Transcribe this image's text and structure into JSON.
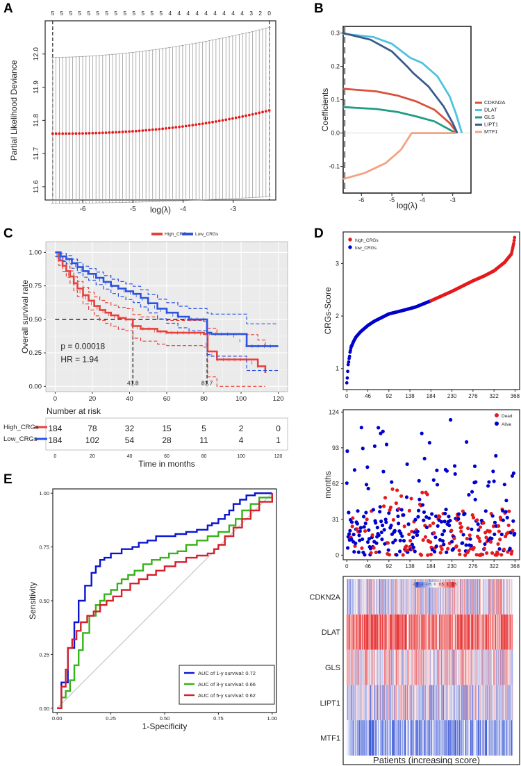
{
  "panels": {
    "A": {
      "letter": "A"
    },
    "B": {
      "letter": "B"
    },
    "C": {
      "letter": "C"
    },
    "D": {
      "letter": "D"
    },
    "E": {
      "letter": "E"
    }
  },
  "colors": {
    "red": "#d62728",
    "blue": "#1f3fd1",
    "dark_red": "#e41a1c",
    "dark_blue": "#0000cd",
    "cdkn2a": "#d9503b",
    "dlat": "#4ec2e0",
    "gls": "#1e9c84",
    "lipt1": "#3a5a8c",
    "mtf1": "#f3a282",
    "heat_high": "#e8383a",
    "heat_low": "#3d5ad8"
  },
  "chart_data": [
    {
      "id": "A",
      "type": "scatter",
      "title": "",
      "xlabel": "log(λ)",
      "ylabel": "Partial Likelihood Deviance",
      "xlim": [
        -6.75,
        -2.15
      ],
      "ylim": [
        11.56,
        12.1
      ],
      "xticks": [
        "-6",
        "-5",
        "-4",
        "-3"
      ],
      "xtick_values": [
        -6,
        -5,
        -4,
        -3
      ],
      "yticks": [
        "11.6",
        "11.7",
        "11.8",
        "11.9",
        "12.0"
      ],
      "ytick_values": [
        11.6,
        11.7,
        11.8,
        11.9,
        12.0
      ],
      "top_counts": [
        "5",
        "5",
        "5",
        "5",
        "5",
        "5",
        "5",
        "5",
        "5",
        "5",
        "5",
        "5",
        "5",
        "4",
        "4",
        "4",
        "4",
        "4",
        "4",
        "4",
        "4",
        "4",
        "3",
        "2",
        "0"
      ],
      "top_count_x": [
        -6.6,
        -6.42,
        -6.24,
        -6.06,
        -5.88,
        -5.7,
        -5.52,
        -5.34,
        -5.16,
        -4.98,
        -4.8,
        -4.62,
        -4.44,
        -4.26,
        -4.08,
        -3.9,
        -3.72,
        -3.54,
        -3.36,
        -3.18,
        -3.0,
        -2.82,
        -2.64,
        -2.46,
        -2.28
      ],
      "vlines": [
        -6.6,
        -2.28
      ],
      "n_points": 66,
      "x_start": -6.6,
      "x_end": -2.28,
      "mean_start": 11.76,
      "mean_end": 11.83,
      "upper_start": 11.99,
      "upper_end": 12.08,
      "lower_start": 11.55,
      "lower_end": 11.57
    },
    {
      "id": "B",
      "type": "line",
      "xlabel": "log(λ)",
      "ylabel": "Coefficients",
      "xlim": [
        -6.6,
        -2.4
      ],
      "ylim": [
        -0.18,
        0.32
      ],
      "xticks": [
        "-6",
        "-5",
        "-4",
        "-3"
      ],
      "xtick_values": [
        -6,
        -5,
        -4,
        -3
      ],
      "yticks": [
        "-0.1",
        "0.0",
        "0.1",
        "0.2",
        "0.3"
      ],
      "ytick_values": [
        -0.1,
        0.0,
        0.1,
        0.2,
        0.3
      ],
      "series": [
        {
          "name": "CDKN2A",
          "x": [
            -6.6,
            -5.5,
            -4.8,
            -4.2,
            -3.6,
            -3.1,
            -2.85
          ],
          "y": [
            0.133,
            0.125,
            0.112,
            0.095,
            0.07,
            0.03,
            0.0
          ]
        },
        {
          "name": "DLAT",
          "x": [
            -6.6,
            -5.6,
            -5.0,
            -4.4,
            -4.0,
            -3.5,
            -3.1,
            -2.9,
            -2.7
          ],
          "y": [
            0.298,
            0.288,
            0.268,
            0.226,
            0.21,
            0.17,
            0.11,
            0.06,
            0.0
          ]
        },
        {
          "name": "GLS",
          "x": [
            -6.6,
            -5.5,
            -4.8,
            -4.2,
            -3.6,
            -3.2,
            -2.9
          ],
          "y": [
            0.078,
            0.072,
            0.063,
            0.05,
            0.035,
            0.015,
            0.0
          ]
        },
        {
          "name": "LIPT1",
          "x": [
            -6.6,
            -5.7,
            -5.0,
            -4.5,
            -4.3,
            -3.8,
            -3.3,
            -3.0,
            -2.85
          ],
          "y": [
            0.3,
            0.28,
            0.245,
            0.2,
            0.18,
            0.14,
            0.08,
            0.03,
            0.0
          ]
        },
        {
          "name": "MTF1",
          "x": [
            -6.6,
            -5.9,
            -5.2,
            -4.7,
            -4.35,
            -2.9
          ],
          "y": [
            -0.138,
            -0.12,
            -0.09,
            -0.05,
            0.0,
            0.0
          ]
        }
      ],
      "legend_position": "right"
    },
    {
      "id": "C",
      "type": "line",
      "xlabel": "Time in months",
      "ylabel": "Overall survival rate",
      "xlim": [
        -5,
        125
      ],
      "ylim": [
        -0.04,
        1.08
      ],
      "xticks": [
        "0",
        "20",
        "40",
        "60",
        "80",
        "100",
        "120"
      ],
      "xtick_values": [
        0,
        20,
        40,
        60,
        80,
        100,
        120
      ],
      "yticks": [
        "0.00",
        "0.25",
        "0.50",
        "0.75",
        "1.00"
      ],
      "ytick_values": [
        0,
        0.25,
        0.5,
        0.75,
        1.0
      ],
      "legend": [
        "High_CRGs",
        "Low_CRGs"
      ],
      "p_value": "p = 0.00018",
      "hr": "HR = 1.94",
      "median_labels": [
        "41.8",
        "81.7"
      ],
      "medians": [
        41.8,
        81.7
      ],
      "series": [
        {
          "name": "High_CRGs",
          "x": [
            0,
            2,
            4,
            6,
            8,
            10,
            12,
            15,
            18,
            21,
            24,
            27,
            30,
            34,
            38,
            41.8,
            46,
            50,
            55,
            60,
            65,
            70,
            75,
            80,
            82,
            87,
            95,
            103,
            109,
            113
          ],
          "y": [
            1.0,
            0.94,
            0.9,
            0.86,
            0.82,
            0.77,
            0.73,
            0.68,
            0.64,
            0.6,
            0.57,
            0.55,
            0.53,
            0.51,
            0.5,
            0.45,
            0.43,
            0.43,
            0.41,
            0.4,
            0.4,
            0.4,
            0.4,
            0.39,
            0.26,
            0.2,
            0.2,
            0.2,
            0.15,
            0.1
          ]
        },
        {
          "name": "Low_CRGs",
          "x": [
            0,
            3,
            6,
            9,
            12,
            15,
            18,
            22,
            26,
            30,
            34,
            38,
            42,
            46,
            50,
            55,
            60,
            66,
            72,
            80,
            81.7,
            84,
            95,
            103,
            112,
            120
          ],
          "y": [
            1.0,
            0.97,
            0.95,
            0.92,
            0.89,
            0.86,
            0.84,
            0.81,
            0.78,
            0.75,
            0.73,
            0.71,
            0.69,
            0.66,
            0.62,
            0.58,
            0.55,
            0.52,
            0.5,
            0.5,
            0.4,
            0.39,
            0.39,
            0.3,
            0.3,
            0.3
          ]
        }
      ],
      "risk_table": {
        "title": "Number at risk",
        "rows": [
          {
            "name": "High_CRGs",
            "values": [
              "184",
              "78",
              "32",
              "15",
              "5",
              "2",
              "0"
            ]
          },
          {
            "name": "Low_CRGs",
            "values": [
              "184",
              "102",
              "54",
              "28",
              "11",
              "4",
              "1"
            ]
          }
        ],
        "xticks": [
          "0",
          "20",
          "40",
          "60",
          "80",
          "100",
          "120"
        ]
      }
    },
    {
      "id": "D1",
      "type": "scatter",
      "ylabel": "CRGs-Score",
      "xticks": [
        "0",
        "46",
        "92",
        "138",
        "184",
        "230",
        "276",
        "322",
        "368"
      ],
      "xtick_values": [
        0,
        46,
        92,
        138,
        184,
        230,
        276,
        322,
        368
      ],
      "yticks": [
        "1",
        "2",
        "3"
      ],
      "ytick_values": [
        1,
        2,
        3
      ],
      "xlim": [
        -8,
        378
      ],
      "ylim": [
        0.6,
        3.6
      ],
      "legend": [
        "high_CRGs",
        "low_CRGs"
      ],
      "n": 368,
      "split": 184,
      "score_knots_x": [
        0,
        3,
        6,
        10,
        15,
        20,
        30,
        46,
        60,
        92,
        120,
        150,
        184,
        230,
        276,
        300,
        322,
        345,
        360,
        365,
        368
      ],
      "score_knots_y": [
        0.72,
        1.05,
        1.25,
        1.42,
        1.52,
        1.6,
        1.7,
        1.82,
        1.9,
        2.04,
        2.1,
        2.17,
        2.29,
        2.47,
        2.67,
        2.76,
        2.86,
        3.02,
        3.18,
        3.38,
        3.55
      ]
    },
    {
      "id": "D2",
      "type": "scatter",
      "ylabel": "months",
      "xticks": [
        "0",
        "46",
        "92",
        "138",
        "184",
        "230",
        "276",
        "322",
        "368"
      ],
      "xtick_values": [
        0,
        46,
        92,
        138,
        184,
        230,
        276,
        322,
        368
      ],
      "yticks": [
        "0",
        "31",
        "62",
        "93",
        "124"
      ],
      "ytick_values": [
        0,
        31,
        62,
        93,
        124
      ],
      "xlim": [
        -8,
        378
      ],
      "ylim": [
        -4,
        126
      ],
      "legend": [
        "Dead",
        "Alive"
      ],
      "n": 368
    },
    {
      "id": "D3",
      "type": "heatmap",
      "rows": [
        "CDKN2A",
        "DLAT",
        "GLS",
        "LIPT1",
        "MTF1"
      ],
      "scale_ticks": [
        "-1.5",
        "-1",
        "-0.5",
        "0",
        "0.5",
        "1",
        "1.5"
      ],
      "scale_values": [
        -1.5,
        -1,
        -0.5,
        0,
        0.5,
        1,
        1.5
      ],
      "row_bias": [
        -0.35,
        1.1,
        0.15,
        -0.25,
        -0.9
      ],
      "n_cols": 368,
      "xlabel": "Patients (increasing score)"
    },
    {
      "id": "E",
      "type": "line",
      "xlabel": "1-Specificity",
      "ylabel": "Sensitivity",
      "xlim": [
        -0.02,
        1.02
      ],
      "ylim": [
        -0.02,
        1.02
      ],
      "xticks": [
        "0.00",
        "0.25",
        "0.50",
        "0.75",
        "1.00"
      ],
      "xtick_values": [
        0,
        0.25,
        0.5,
        0.75,
        1.0
      ],
      "yticks": [
        "0.00",
        "0.25",
        "0.50",
        "0.75",
        "1.00"
      ],
      "ytick_values": [
        0,
        0.25,
        0.5,
        0.75,
        1.0
      ],
      "legend": [
        "AUC of 1-y survival: 0.72",
        "AUC of 3-y survival: 0.66",
        "AUC of 5-y survival: 0.62"
      ],
      "legend_position": "bottom-right",
      "series": [
        {
          "name": "AUC of 1-y survival: 0.72",
          "x": [
            0,
            0.02,
            0.02,
            0.05,
            0.05,
            0.08,
            0.08,
            0.1,
            0.1,
            0.13,
            0.13,
            0.16,
            0.16,
            0.18,
            0.2,
            0.22,
            0.25,
            0.28,
            0.3,
            0.35,
            0.38,
            0.42,
            0.46,
            0.5,
            0.55,
            0.6,
            0.65,
            0.7,
            0.72,
            0.75,
            0.78,
            0.8,
            0.82,
            0.85,
            0.88,
            0.92,
            0.96,
            1.0
          ],
          "y": [
            0,
            0.05,
            0.12,
            0.2,
            0.28,
            0.35,
            0.4,
            0.45,
            0.5,
            0.52,
            0.57,
            0.6,
            0.63,
            0.66,
            0.69,
            0.7,
            0.72,
            0.72,
            0.74,
            0.75,
            0.77,
            0.78,
            0.8,
            0.8,
            0.81,
            0.82,
            0.83,
            0.85,
            0.86,
            0.88,
            0.9,
            0.92,
            0.95,
            0.97,
            0.99,
            1.0,
            1.0,
            1.0
          ]
        },
        {
          "name": "AUC of 3-y survival: 0.66",
          "x": [
            0,
            0.02,
            0.04,
            0.06,
            0.08,
            0.1,
            0.12,
            0.15,
            0.18,
            0.2,
            0.22,
            0.25,
            0.28,
            0.3,
            0.33,
            0.36,
            0.4,
            0.44,
            0.48,
            0.52,
            0.56,
            0.6,
            0.65,
            0.7,
            0.75,
            0.8,
            0.83,
            0.86,
            0.9,
            0.94,
            1.0
          ],
          "y": [
            0,
            0.05,
            0.08,
            0.13,
            0.2,
            0.27,
            0.35,
            0.43,
            0.48,
            0.5,
            0.53,
            0.55,
            0.58,
            0.6,
            0.62,
            0.64,
            0.67,
            0.69,
            0.7,
            0.72,
            0.73,
            0.76,
            0.78,
            0.8,
            0.82,
            0.85,
            0.88,
            0.92,
            0.95,
            0.98,
            1.0
          ]
        },
        {
          "name": "AUC of 5-y survival: 0.62",
          "x": [
            0,
            0.02,
            0.04,
            0.05,
            0.07,
            0.09,
            0.11,
            0.14,
            0.17,
            0.2,
            0.23,
            0.26,
            0.3,
            0.34,
            0.38,
            0.42,
            0.46,
            0.5,
            0.55,
            0.6,
            0.65,
            0.7,
            0.73,
            0.75,
            0.78,
            0.82,
            0.86,
            0.9,
            0.94,
            1.0
          ],
          "y": [
            0,
            0.1,
            0.18,
            0.28,
            0.32,
            0.36,
            0.4,
            0.43,
            0.45,
            0.48,
            0.5,
            0.52,
            0.55,
            0.58,
            0.6,
            0.62,
            0.64,
            0.66,
            0.68,
            0.7,
            0.71,
            0.72,
            0.74,
            0.76,
            0.8,
            0.84,
            0.88,
            0.92,
            0.96,
            1.0
          ]
        }
      ]
    }
  ]
}
